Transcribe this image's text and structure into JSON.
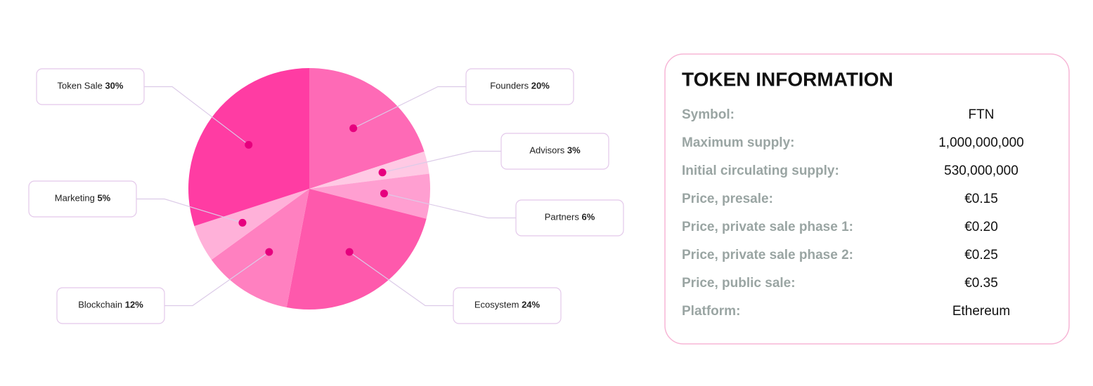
{
  "chart_data": {
    "type": "pie",
    "categories": [
      "Founders",
      "Advisors",
      "Partners",
      "Ecosystem",
      "Blockchain",
      "Marketing",
      "Token Sale"
    ],
    "values": [
      20,
      3,
      6,
      24,
      12,
      5,
      30
    ],
    "value_labels": [
      "20%",
      "3%",
      "6%",
      "24%",
      "12%",
      "5%",
      "30%"
    ],
    "colors": [
      "#fe6ab6",
      "#ffc9e4",
      "#ff9fd1",
      "#fe59ac",
      "#ff80c0",
      "#ffb1d9",
      "#ff3ca3"
    ]
  },
  "token_info": {
    "title": "TOKEN INFORMATION",
    "rows": [
      [
        "Symbol:",
        "FTN"
      ],
      [
        "Maximum supply:",
        "1,000,000,000"
      ],
      [
        "Initial circulating supply:",
        "530,000,000"
      ],
      [
        "Price, presale:",
        "€0.15"
      ],
      [
        "Price, private sale phase 1:",
        "€0.20"
      ],
      [
        "Price, private sale phase 2:",
        "€0.25"
      ],
      [
        "Price, public sale:",
        "€0.35"
      ],
      [
        "Platform:",
        "Ethereum"
      ]
    ]
  }
}
